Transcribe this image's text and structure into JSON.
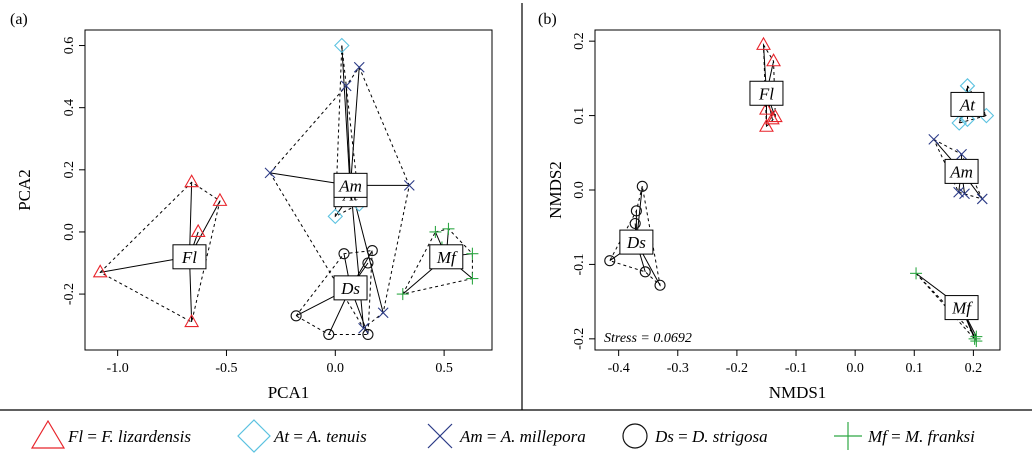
{
  "colors": {
    "Fl": "#e8242b",
    "At": "#5bc2e0",
    "Am": "#2b3a86",
    "Ds": "#111111",
    "Mf": "#2ea844"
  },
  "legend": [
    {
      "group": "Fl",
      "marker": "triangle",
      "abbr": "Fl",
      "eq": " = ",
      "name": "F. lizardensis"
    },
    {
      "group": "At",
      "marker": "diamond",
      "abbr": "At",
      "eq": " = ",
      "name": "A. tenuis"
    },
    {
      "group": "Am",
      "marker": "x",
      "abbr": "Am",
      "eq": " = ",
      "name": "A. millepora"
    },
    {
      "group": "Ds",
      "marker": "circle",
      "abbr": "Ds",
      "eq": " = ",
      "name": "D. strigosa"
    },
    {
      "group": "Mf",
      "marker": "plus",
      "abbr": "Mf",
      "eq": " = ",
      "name": "M. franksi"
    }
  ],
  "chart_data": [
    {
      "type": "scatter",
      "panel_label": "(a)",
      "xlabel": "PCA1",
      "ylabel": "PCA2",
      "xlim": [
        -1.15,
        0.72
      ],
      "ylim": [
        -0.38,
        0.65
      ],
      "xticks": [
        -1.0,
        -0.5,
        0.0,
        0.5
      ],
      "xtick_labels": [
        "-1.0",
        "-0.5",
        "0.0",
        "0.5"
      ],
      "yticks": [
        -0.2,
        0.0,
        0.2,
        0.4,
        0.6
      ],
      "ytick_labels": [
        "-0.2",
        "0.0",
        "0.2",
        "0.4",
        "0.6"
      ],
      "annotation": "",
      "series": [
        {
          "group": "Fl",
          "centroid": [
            -0.67,
            -0.08
          ],
          "points": [
            [
              -1.08,
              -0.13
            ],
            [
              -0.66,
              0.16
            ],
            [
              -0.53,
              0.1
            ],
            [
              -0.63,
              0.0
            ],
            [
              -0.66,
              -0.29
            ],
            [
              -0.67,
              -0.08
            ]
          ],
          "hull": [
            0,
            1,
            2,
            4
          ]
        },
        {
          "group": "At",
          "centroid": [
            0.07,
            0.12
          ],
          "points": [
            [
              0.03,
              0.6
            ],
            [
              0.0,
              0.05
            ],
            [
              0.11,
              0.09
            ]
          ],
          "hull": [
            0,
            1,
            2
          ]
        },
        {
          "group": "Am",
          "centroid": [
            0.07,
            0.15
          ],
          "points": [
            [
              -0.3,
              0.19
            ],
            [
              0.34,
              0.15
            ],
            [
              0.11,
              0.53
            ],
            [
              0.05,
              0.47
            ],
            [
              0.22,
              -0.26
            ],
            [
              0.13,
              -0.31
            ]
          ],
          "hull": [
            0,
            3,
            2,
            1,
            4,
            5
          ]
        },
        {
          "group": "Ds",
          "centroid": [
            0.07,
            -0.18
          ],
          "points": [
            [
              -0.18,
              -0.27
            ],
            [
              -0.03,
              -0.33
            ],
            [
              0.15,
              -0.33
            ],
            [
              0.17,
              -0.06
            ],
            [
              0.15,
              -0.1
            ],
            [
              0.04,
              -0.07
            ]
          ],
          "hull": [
            0,
            5,
            3,
            2,
            1
          ]
        },
        {
          "group": "Mf",
          "centroid": [
            0.51,
            -0.08
          ],
          "points": [
            [
              0.46,
              0.0
            ],
            [
              0.52,
              0.01
            ],
            [
              0.63,
              -0.07
            ],
            [
              0.63,
              -0.15
            ],
            [
              0.31,
              -0.2
            ],
            [
              0.49,
              -0.05
            ]
          ],
          "hull": [
            0,
            1,
            2,
            3,
            4
          ]
        }
      ]
    },
    {
      "type": "scatter",
      "panel_label": "(b)",
      "xlabel": "NMDS1",
      "ylabel": "NMDS2",
      "xlim": [
        -0.44,
        0.245
      ],
      "ylim": [
        -0.215,
        0.215
      ],
      "xticks": [
        -0.4,
        -0.3,
        -0.2,
        -0.1,
        0.0,
        0.1,
        0.2
      ],
      "xtick_labels": [
        "-0.4",
        "-0.3",
        "-0.2",
        "-0.1",
        "0.0",
        "0.1",
        "0.2"
      ],
      "yticks": [
        -0.2,
        -0.1,
        0.0,
        0.1,
        0.2
      ],
      "ytick_labels": [
        "-0.2",
        "-0.1",
        "0.0",
        "0.1",
        "0.2"
      ],
      "annotation": "Stress = 0.0692",
      "series": [
        {
          "group": "Fl",
          "centroid": [
            -0.15,
            0.13
          ],
          "points": [
            [
              -0.155,
              0.195
            ],
            [
              -0.138,
              0.173
            ],
            [
              -0.15,
              0.085
            ],
            [
              -0.135,
              0.098
            ],
            [
              -0.15,
              0.108
            ],
            [
              -0.14,
              0.095
            ]
          ],
          "hull": [
            0,
            1,
            3,
            2
          ]
        },
        {
          "group": "At",
          "centroid": [
            0.19,
            0.115
          ],
          "points": [
            [
              0.19,
              0.14
            ],
            [
              0.222,
              0.1
            ],
            [
              0.176,
              0.09
            ],
            [
              0.19,
              0.095
            ]
          ],
          "hull": [
            0,
            1,
            2
          ]
        },
        {
          "group": "Am",
          "centroid": [
            0.18,
            0.025
          ],
          "points": [
            [
              0.133,
              0.068
            ],
            [
              0.18,
              0.048
            ],
            [
              0.215,
              -0.012
            ],
            [
              0.175,
              -0.003
            ],
            [
              0.185,
              -0.005
            ]
          ],
          "hull": [
            0,
            1,
            2,
            3
          ]
        },
        {
          "group": "Ds",
          "centroid": [
            -0.37,
            -0.07
          ],
          "points": [
            [
              -0.36,
              0.005
            ],
            [
              -0.37,
              -0.028
            ],
            [
              -0.415,
              -0.095
            ],
            [
              -0.355,
              -0.11
            ],
            [
              -0.33,
              -0.128
            ],
            [
              -0.372,
              -0.045
            ]
          ],
          "hull": [
            0,
            1,
            2,
            3,
            4
          ]
        },
        {
          "group": "Mf",
          "centroid": [
            0.18,
            -0.158
          ],
          "points": [
            [
              0.103,
              -0.112
            ],
            [
              0.205,
              -0.197
            ],
            [
              0.205,
              -0.203
            ],
            [
              0.202,
              -0.2
            ]
          ],
          "hull": [
            0,
            1,
            2
          ]
        }
      ]
    }
  ]
}
